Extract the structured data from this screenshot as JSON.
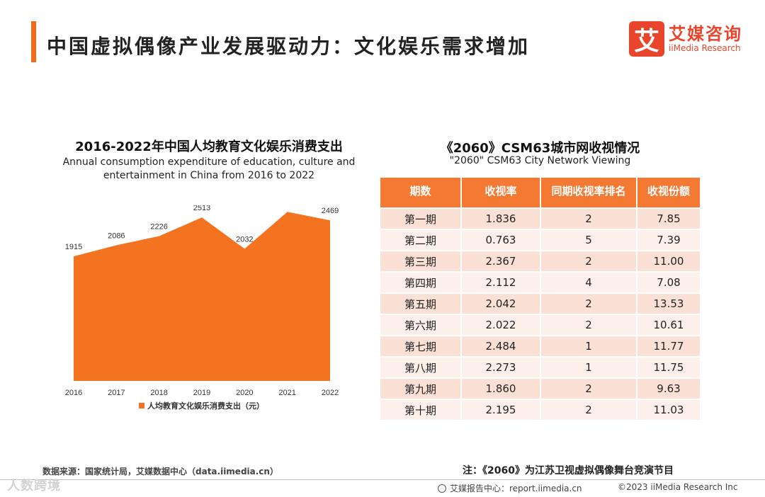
{
  "header": {
    "title": "中国虚拟偶像产业发展驱动力：文化娱乐需求增加",
    "logo_mark": "艾",
    "logo_cn": "艾媒咨询",
    "logo_en": "iiMedia Research"
  },
  "chart_data": [
    {
      "type": "area",
      "title": "2016-2022年中国人均教育文化娱乐消费支出",
      "subtitle": "Annual consumption expenditure of education, culture and entertainment in China from 2016 to 2022",
      "categories": [
        "2016",
        "2017",
        "2018",
        "2019",
        "2020",
        "2021",
        "2022"
      ],
      "series": [
        {
          "name": "人均教育文化娱乐消费支出（元）",
          "values": [
            1915,
            2086,
            2226,
            2513,
            2032,
            2599,
            2469
          ],
          "color": "#f47321"
        }
      ],
      "ylim": [
        0,
        2700
      ],
      "grid": false,
      "legend": "bottom"
    },
    {
      "type": "table",
      "title": "《2060》CSM63城市网收视情况",
      "subtitle": "\"2060\" CSM63 City Network Viewing",
      "columns": [
        "期数",
        "收视率",
        "同期收视率排名",
        "收视份额"
      ],
      "rows": [
        [
          "第一期",
          "1.836",
          "2",
          "7.85"
        ],
        [
          "第二期",
          "0.763",
          "5",
          "7.39"
        ],
        [
          "第三期",
          "2.367",
          "2",
          "11.00"
        ],
        [
          "第四期",
          "2.112",
          "4",
          "7.08"
        ],
        [
          "第五期",
          "2.042",
          "2",
          "13.53"
        ],
        [
          "第六期",
          "2.022",
          "2",
          "10.61"
        ],
        [
          "第七期",
          "2.484",
          "1",
          "11.77"
        ],
        [
          "第八期",
          "2.273",
          "1",
          "11.75"
        ],
        [
          "第九期",
          "1.860",
          "2",
          "9.63"
        ],
        [
          "第十期",
          "2.195",
          "2",
          "11.03"
        ]
      ]
    }
  ],
  "footer": {
    "source": "数据来源：国家统计局，艾媒数据中心（data.iimedia.cn）",
    "note": "注：《2060》为江苏卫视虚拟偶像舞台竞演节目",
    "report": "艾媒报告中心：report.iimedia.cn",
    "copyright": "©2023  iiMedia Research  Inc",
    "watermark": "人数跨境"
  },
  "colors": {
    "accent": "#f26b1d",
    "logo": "#e8452c",
    "table_header": "#f47a33"
  }
}
